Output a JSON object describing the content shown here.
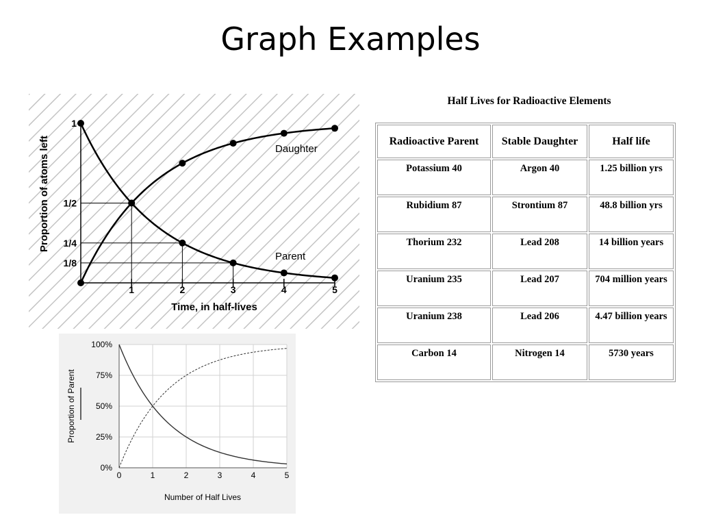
{
  "title": "Graph Examples",
  "chart_data": [
    {
      "type": "line",
      "xlabel": "Time, in half-lives",
      "ylabel": "Proportion of atoms left",
      "xlim": [
        0,
        5
      ],
      "ylim": [
        0,
        1
      ],
      "x_ticks": [
        "1",
        "2",
        "3",
        "4",
        "5"
      ],
      "y_ticks": [
        {
          "value": 1,
          "label": "1"
        },
        {
          "value": 0.5,
          "label": "1/2"
        },
        {
          "value": 0.25,
          "label": "1/4"
        },
        {
          "value": 0.125,
          "label": "1/8"
        }
      ],
      "background": "diagonal hatch",
      "series": [
        {
          "name": "Daughter",
          "x": [
            0,
            1,
            2,
            3,
            4,
            5
          ],
          "values": [
            0,
            0.5,
            0.75,
            0.875,
            0.9375,
            0.96875
          ]
        },
        {
          "name": "Parent",
          "x": [
            0,
            1,
            2,
            3,
            4,
            5
          ],
          "values": [
            1,
            0.5,
            0.25,
            0.125,
            0.0625,
            0.03125
          ]
        }
      ],
      "guides": [
        0.5,
        0.25,
        0.125
      ],
      "markers": true,
      "colors": {
        "line": "#000000",
        "hatch": "#c4c4c4"
      }
    },
    {
      "type": "line",
      "xlabel": "Number of Half Lives",
      "ylabel": "Proportion of Parent",
      "xlim": [
        0,
        5
      ],
      "ylim": [
        0,
        100
      ],
      "x_ticks": [
        "0",
        "1",
        "2",
        "3",
        "4",
        "5"
      ],
      "y_ticks": [
        {
          "value": 100,
          "label": "100%"
        },
        {
          "value": 75,
          "label": "75%"
        },
        {
          "value": 50,
          "label": "50%"
        },
        {
          "value": 25,
          "label": "25%"
        },
        {
          "value": 0,
          "label": "0%"
        }
      ],
      "grid": true,
      "series": [
        {
          "style": "solid",
          "x": [
            0,
            0.5,
            1,
            1.5,
            2,
            2.5,
            3,
            3.5,
            4,
            4.5,
            5
          ],
          "values": [
            100,
            70.7,
            50,
            35.4,
            25,
            17.7,
            12.5,
            8.8,
            6.3,
            4.4,
            3.1
          ]
        },
        {
          "style": "dashed",
          "x": [
            0,
            0.5,
            1,
            1.5,
            2,
            2.5,
            3,
            3.5,
            4,
            4.5,
            5
          ],
          "values": [
            0,
            29.3,
            50,
            64.6,
            75,
            82.3,
            87.5,
            91.2,
            93.8,
            95.6,
            96.9
          ]
        }
      ],
      "colors": {
        "line": "#333333",
        "grid": "#d2d2d2",
        "background": "#f1f1f1"
      }
    },
    {
      "type": "table",
      "title": "Half Lives for Radioactive Elements",
      "columns": [
        "Radioactive Parent",
        "Stable Daughter",
        "Half life"
      ],
      "rows": [
        [
          "Potassium 40",
          "Argon 40",
          "1.25 billion yrs"
        ],
        [
          "Rubidium 87",
          "Strontium 87",
          "48.8 billion yrs"
        ],
        [
          "Thorium 232",
          "Lead 208",
          "14 billion years"
        ],
        [
          "Uranium 235",
          "Lead 207",
          "704 million years"
        ],
        [
          "Uranium 238",
          "Lead 206",
          "4.47 billion years"
        ],
        [
          "Carbon 14",
          "Nitrogen 14",
          "5730 years"
        ]
      ]
    }
  ]
}
